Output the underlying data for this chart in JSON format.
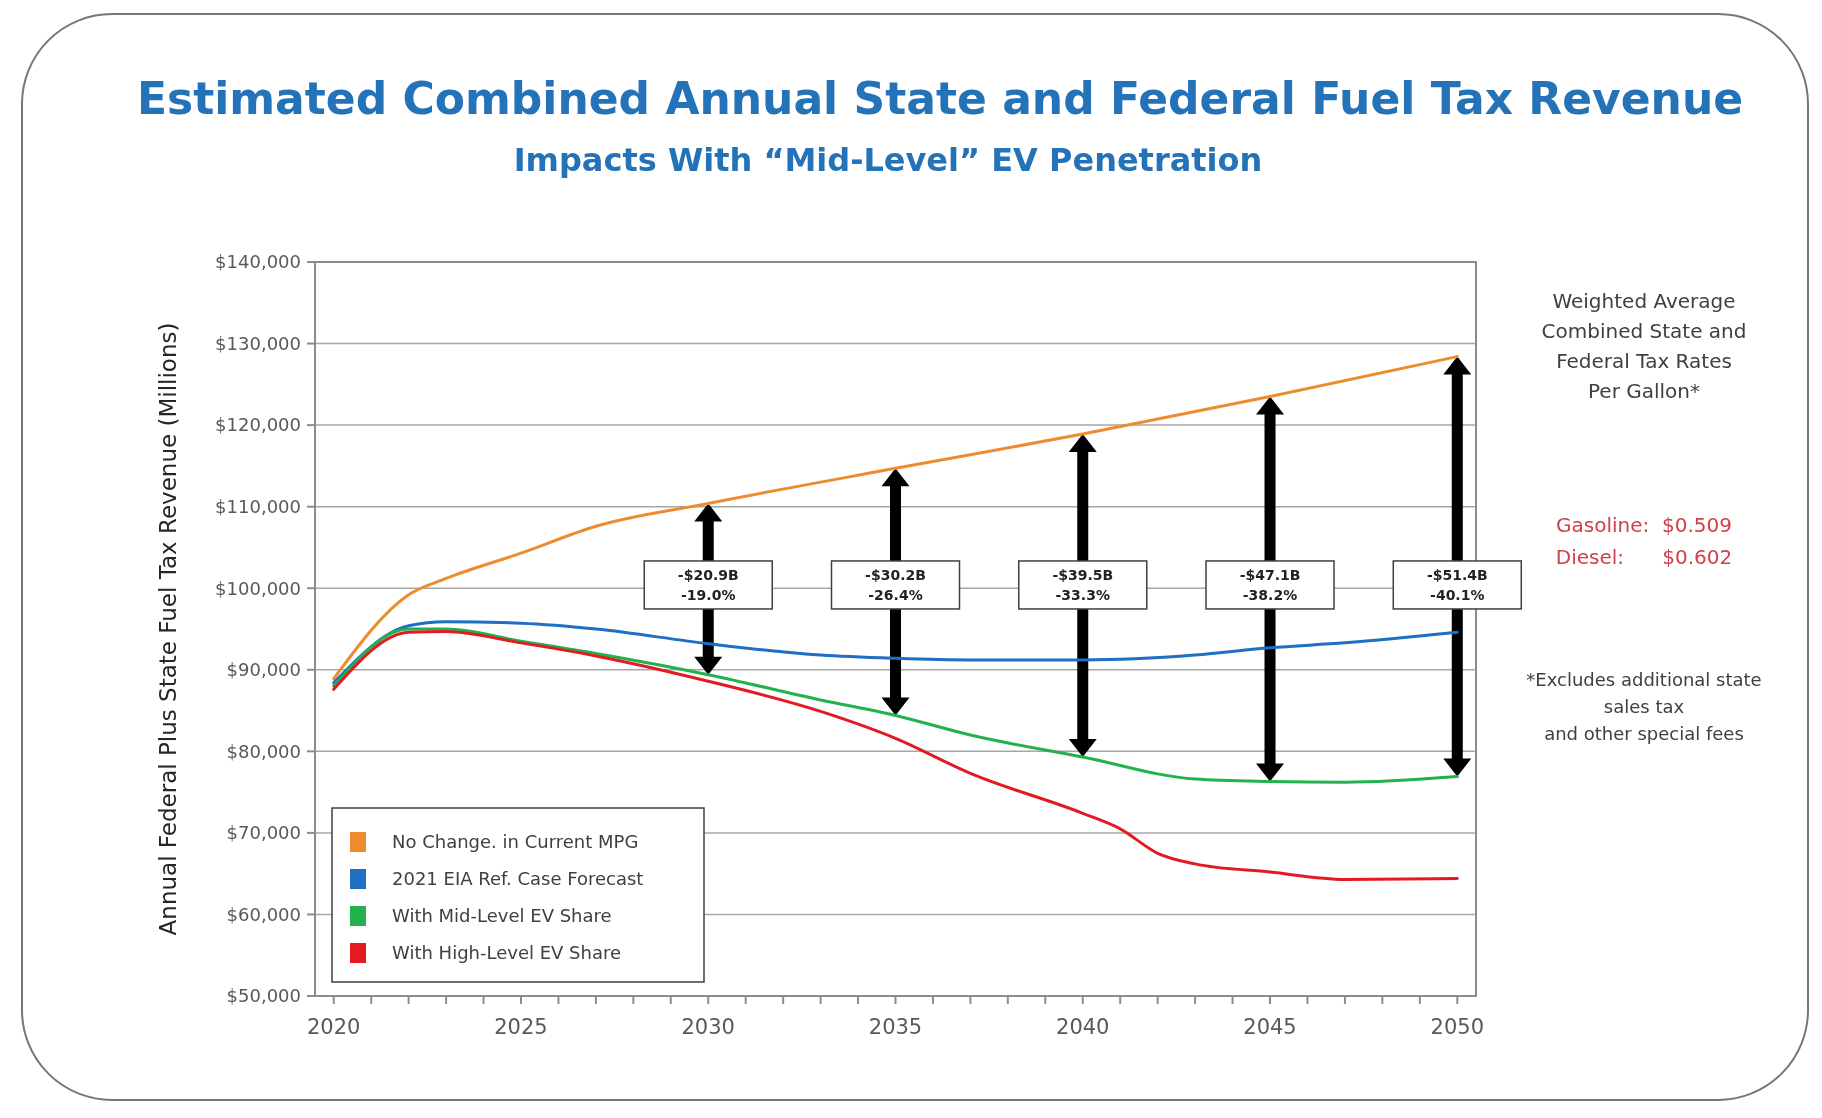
{
  "chart_data": {
    "type": "line",
    "title": "Estimated Combined Annual State and Federal Fuel Tax Revenue",
    "subtitle": "Impacts With “Mid-Level” EV Penetration",
    "ylabel": "Annual Federal Plus State Fuel Tax Revenue (Millions)",
    "xlim": [
      2019.5,
      2050.5
    ],
    "xticks": [
      2020,
      {
        "value": 2021,
        "label": null
      },
      {
        "value": 2022,
        "label": null
      },
      {
        "value": 2023,
        "label": null
      },
      {
        "value": 2024,
        "label": null
      },
      2025,
      {
        "value": 2026,
        "label": null
      },
      {
        "value": 2027,
        "label": null
      },
      {
        "value": 2028,
        "label": null
      },
      {
        "value": 2029,
        "label": null
      },
      2030,
      {
        "value": 2031,
        "label": null
      },
      {
        "value": 2032,
        "label": null
      },
      {
        "value": 2033,
        "label": null
      },
      {
        "value": 2034,
        "label": null
      },
      2035,
      {
        "value": 2036,
        "label": null
      },
      {
        "value": 2037,
        "label": null
      },
      {
        "value": 2038,
        "label": null
      },
      {
        "value": 2039,
        "label": null
      },
      2040,
      {
        "value": 2041,
        "label": null
      },
      {
        "value": 2042,
        "label": null
      },
      {
        "value": 2043,
        "label": null
      },
      {
        "value": 2044,
        "label": null
      },
      2045,
      {
        "value": 2046,
        "label": null
      },
      {
        "value": 2047,
        "label": null
      },
      {
        "value": 2048,
        "label": null
      },
      {
        "value": 2049,
        "label": null
      },
      2050
    ],
    "ylim": [
      50000,
      140000
    ],
    "yticks": [
      {
        "value": 50000,
        "label": "$50,000"
      },
      {
        "value": 60000,
        "label": "$60,000"
      },
      {
        "value": 70000,
        "label": "$70,000"
      },
      {
        "value": 80000,
        "label": "$80,000"
      },
      {
        "value": 90000,
        "label": "$90,000"
      },
      {
        "value": 100000,
        "label": "$100,000"
      },
      {
        "value": 110000,
        "label": "$110,000"
      },
      {
        "value": 120000,
        "label": "$120,000"
      },
      {
        "value": 130000,
        "label": "$130,000"
      },
      {
        "value": 140000,
        "label": "$140,000"
      }
    ],
    "grid": "y",
    "legend": "bottom left",
    "marker": "none",
    "line_style": "solid",
    "series": [
      {
        "name": "No Change. in Current MPG",
        "color": "#ed8b2f",
        "x": [
          2020,
          2022,
          2023,
          2025,
          2027,
          2030,
          2035,
          2040,
          2045,
          2050
        ],
        "values": [
          88900,
          99200,
          101200,
          104300,
          107600,
          110400,
          114700,
          118900,
          123500,
          128400
        ]
      },
      {
        "name": "2021 EIA Ref. Case Forecast",
        "color": "#1f6fc5",
        "x": [
          2020,
          2022,
          2023,
          2025,
          2027,
          2030,
          2033,
          2035,
          2037,
          2040,
          2043,
          2045,
          2047,
          2050
        ],
        "values": [
          88400,
          95400,
          95900,
          95700,
          95000,
          93200,
          91800,
          91400,
          91200,
          91200,
          91800,
          92700,
          93300,
          94600
        ]
      },
      {
        "name": "With Mid-Level EV Share",
        "color": "#22b14c",
        "x": [
          2020,
          2022,
          2023,
          2025,
          2027,
          2030,
          2033,
          2035,
          2037,
          2040,
          2043,
          2045,
          2047,
          2050
        ],
        "values": [
          88000,
          95000,
          95000,
          93500,
          92000,
          89400,
          86300,
          84400,
          82000,
          79300,
          76600,
          76300,
          76200,
          76900
        ]
      },
      {
        "name": "With High-Level EV Share",
        "color": "#e21b23",
        "x": [
          2020,
          2022,
          2023,
          2025,
          2027,
          2030,
          2033,
          2035,
          2037,
          2040,
          2041,
          2042,
          2043,
          2045,
          2047,
          2050
        ],
        "values": [
          87600,
          94600,
          94700,
          93300,
          91700,
          88600,
          84900,
          81600,
          77300,
          72400,
          70500,
          67500,
          66200,
          65200,
          64300,
          64400
        ]
      }
    ],
    "annotations": [
      "-$20.9B\n-19.0%",
      "-$30.2B\n-26.4%",
      "-$39.5B\n-33.3%",
      "-$47.1B\n-38.2%",
      "-$51.4B\n-40.1%",
      "Weighted Average\nCombined State and\nFederal Tax Rates\nPer Gallon*",
      "Gasoline:  $0.509",
      "Diesel:      $0.602",
      "*Excludes additional state\nsales tax\nand other special fees"
    ]
  }
}
